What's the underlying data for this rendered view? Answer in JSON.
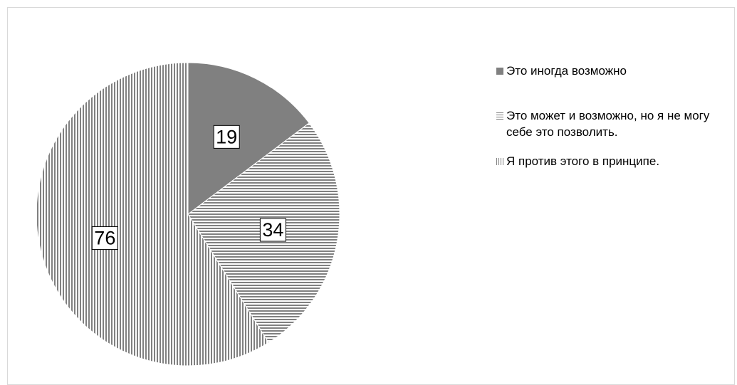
{
  "chart_data": {
    "type": "pie",
    "categories": [
      "Это иногда возможно",
      "Это может и возможно, но я не могу себе это позволить.",
      "Я против этого в принципе."
    ],
    "values": [
      19,
      34,
      76
    ],
    "data_labels": [
      "19",
      "34",
      "76"
    ],
    "slice_fills": [
      "solid",
      "horizontal-stripes",
      "vertical-stripes"
    ],
    "colors": {
      "fill": "#808080",
      "background": "#ffffff",
      "border": "#d9d9d9"
    },
    "start_angle": "12 o'clock",
    "direction": "clockwise",
    "legend_position": "right"
  },
  "legend": {
    "items": [
      {
        "label": "Это иногда возможно",
        "swatch": "solid-square"
      },
      {
        "label": "Это может и возможно, но я не могу себе это позволить.",
        "swatch": "horizontal-stripes"
      },
      {
        "label": "Я против этого в принципе.",
        "swatch": "vertical-stripes"
      }
    ]
  }
}
